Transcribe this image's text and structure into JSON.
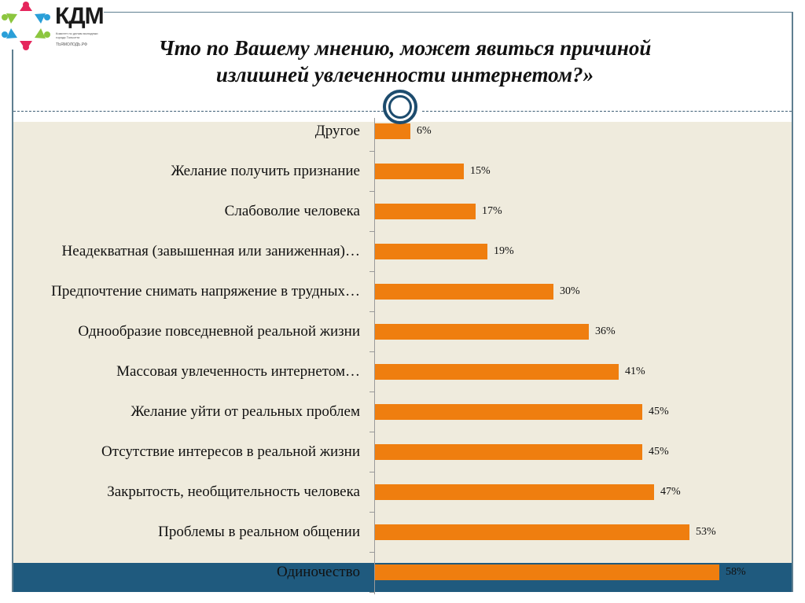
{
  "logo": {
    "name": "КДМ",
    "subtitle": "Комитет по делам молодежи города Тольятти",
    "url": "ТЬЯМОЛОДЬ.РФ"
  },
  "header": {
    "title_line1": "Что по Вашему мнению, может явиться причиной",
    "title_line2": "излишней увлеченности интернетом?»"
  },
  "colors": {
    "bar": "#ef7e0f",
    "plot_background": "#efebdd",
    "highlight_band": "#1f5a7e",
    "frame": "#5f7f90",
    "ring": "#1d4c6e"
  },
  "chart_data": {
    "type": "bar",
    "orientation": "horizontal",
    "title": "Что по Вашему мнению, может явиться причиной излишней увлеченности интернетом?»",
    "xlabel": "",
    "ylabel": "",
    "grid": false,
    "legend": null,
    "xlim": [
      0,
      60
    ],
    "categories": [
      "Другое",
      "Желание получить признание",
      "Слабоволие человека",
      "Неадекватная (завышенная или заниженная)…",
      "Предпочтение снимать напряжение в трудных…",
      "Однообразие повседневной реальной жизни",
      "Массовая увлеченность интернетом…",
      "Желание уйти от реальных проблем",
      "Отсутствие интересов в реальной жизни",
      "Закрытость, необщительность человека",
      "Проблемы в реальном общении",
      "Одиночество"
    ],
    "values": [
      6,
      15,
      17,
      19,
      30,
      36,
      41,
      45,
      45,
      47,
      53,
      58
    ],
    "value_labels": [
      "6%",
      "15%",
      "17%",
      "19%",
      "30%",
      "36%",
      "41%",
      "45%",
      "45%",
      "47%",
      "53%",
      "58%"
    ],
    "highlighted_category": "Одиночество"
  }
}
